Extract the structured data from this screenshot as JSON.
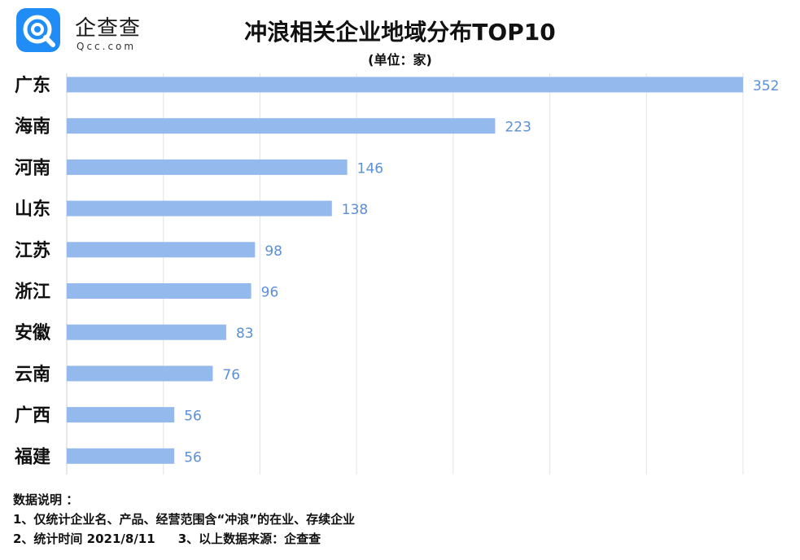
{
  "logo": {
    "name": "企查查",
    "domain": "Qcc.com"
  },
  "chart_data": {
    "type": "bar",
    "orientation": "horizontal",
    "title": "冲浪相关企业地域分布TOP10",
    "unit": "(单位：家)",
    "categories": [
      "广东",
      "海南",
      "河南",
      "山东",
      "江苏",
      "浙江",
      "安徽",
      "云南",
      "广西",
      "福建"
    ],
    "values": [
      352,
      223,
      146,
      138,
      98,
      96,
      83,
      76,
      56,
      56
    ],
    "xlim": [
      0,
      352
    ],
    "grid": true,
    "bar_color": "#93b9ed",
    "label_color": "#5b8fd6"
  },
  "notes": {
    "heading": "数据说明 ：",
    "line1": "1、仅统计企业名、产品、经营范围含“冲浪”的在业、存续企业",
    "line2_a": "2、统计时间 2021/8/11",
    "line2_b": "3、以上数据来源：企查查"
  }
}
